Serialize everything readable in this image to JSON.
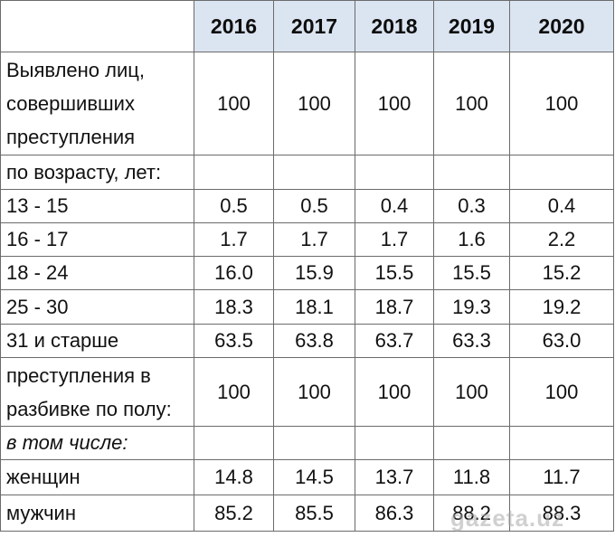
{
  "table": {
    "years": [
      "2016",
      "2017",
      "2018",
      "2019",
      "2020"
    ],
    "rows": [
      {
        "label": "Выявлено лиц,\nсовершивших\nпреступления",
        "values": [
          "100",
          "100",
          "100",
          "100",
          "100"
        ]
      },
      {
        "label": "по возрасту, лет:",
        "values": [
          "",
          "",
          "",
          "",
          ""
        ]
      },
      {
        "label": "13 - 15",
        "values": [
          "0.5",
          "0.5",
          "0.4",
          "0.3",
          "0.4"
        ]
      },
      {
        "label": "16 - 17",
        "values": [
          "1.7",
          "1.7",
          "1.7",
          "1.6",
          "2.2"
        ]
      },
      {
        "label": "18 - 24",
        "values": [
          "16.0",
          "15.9",
          "15.5",
          "15.5",
          "15.2"
        ]
      },
      {
        "label": "25 - 30",
        "values": [
          "18.3",
          "18.1",
          "18.7",
          "19.3",
          "19.2"
        ]
      },
      {
        "label": "31 и старше",
        "values": [
          "63.5",
          "63.8",
          "63.7",
          "63.3",
          "63.0"
        ]
      },
      {
        "label": "преступления в\nразбивке по полу:",
        "values": [
          "100",
          "100",
          "100",
          "100",
          "100"
        ]
      },
      {
        "label": "в том числе:",
        "values": [
          "",
          "",
          "",
          "",
          ""
        ]
      },
      {
        "label": "женщин",
        "values": [
          "14.8",
          "14.5",
          "13.7",
          "11.8",
          "11.7"
        ]
      },
      {
        "label": "мужчин",
        "values": [
          "85.2",
          "85.5",
          "86.3",
          "88.2",
          "88.3"
        ]
      }
    ]
  },
  "watermark": "gazeta.uz",
  "colors": {
    "header_bg": "#dbe5f1",
    "border": "#6b6b6b",
    "text": "#111111"
  }
}
